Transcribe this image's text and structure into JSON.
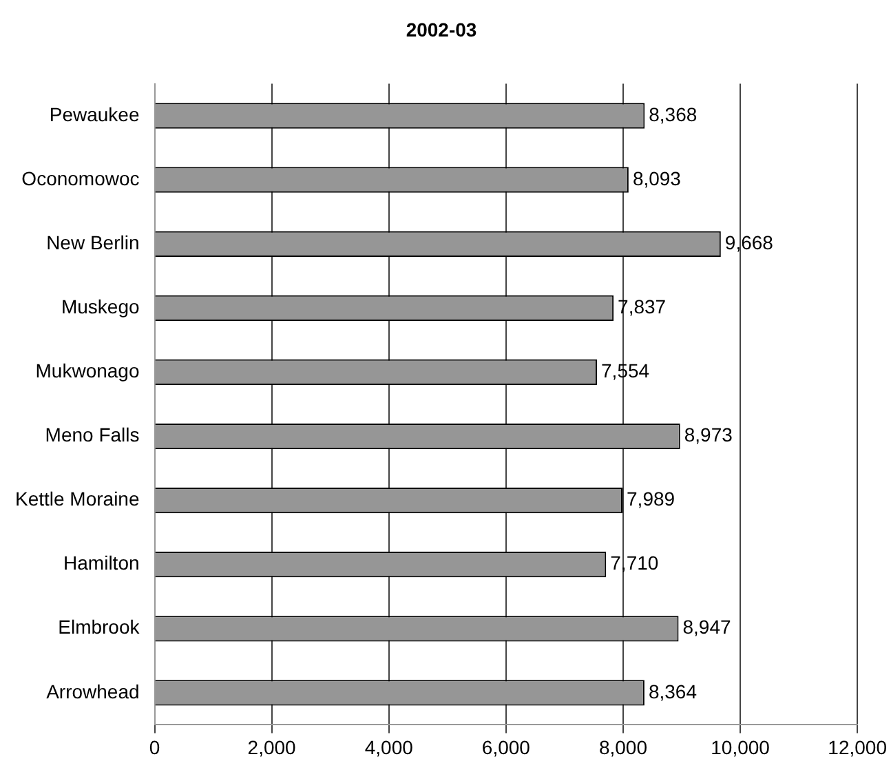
{
  "chart_data": {
    "type": "bar",
    "orientation": "horizontal",
    "title": "2002-03",
    "categories": [
      "Pewaukee",
      "Oconomowoc",
      "New Berlin",
      "Muskego",
      "Mukwonago",
      "Meno Falls",
      "Kettle Moraine",
      "Hamilton",
      "Elmbrook",
      "Arrowhead"
    ],
    "values": [
      8368,
      8093,
      9668,
      7837,
      7554,
      8973,
      7989,
      7710,
      8947,
      8364
    ],
    "value_labels": [
      "8,368",
      "8,093",
      "9,668",
      "7,837",
      "7,554",
      "8,973",
      "7,989",
      "7,710",
      "8,947",
      "8,364"
    ],
    "color": "#969696",
    "xlim": [
      0,
      12000
    ],
    "xticks": [
      {
        "value": 0,
        "label": "0"
      },
      {
        "value": 2000,
        "label": "2,000"
      },
      {
        "value": 4000,
        "label": "4,000"
      },
      {
        "value": 6000,
        "label": "6,000"
      },
      {
        "value": 8000,
        "label": "8,000"
      },
      {
        "value": 10000,
        "label": "10,000"
      },
      {
        "value": 12000,
        "label": "12,000"
      }
    ],
    "grid": "x",
    "legend": false
  }
}
